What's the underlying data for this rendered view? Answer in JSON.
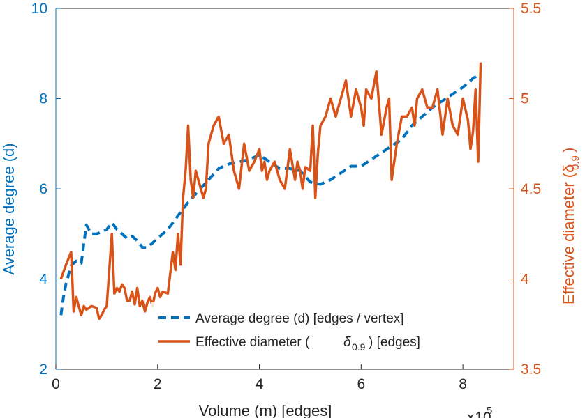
{
  "chart_data": {
    "type": "line",
    "title": "",
    "xlabel": "Volume (m) [edges]",
    "x_exponent": "×10",
    "x_exponent_power": "5",
    "xlim": [
      0,
      9
    ],
    "xticks": [
      0,
      2,
      4,
      6,
      8
    ],
    "ylabel_left": "Average degree (d)",
    "ylim_left": [
      2,
      10
    ],
    "yticks_left": [
      2,
      4,
      6,
      8,
      10
    ],
    "ylabel_right": "Effective diameter (δ",
    "ylabel_right_sub": "0.9",
    "ylabel_right_end": ")",
    "ylim_right": [
      3.5,
      5.5
    ],
    "yticks_right": [
      "3.5",
      "4",
      "4.5",
      "5",
      "5.5"
    ],
    "colors": {
      "avg_degree": "#0072BD",
      "eff_diameter": "#D95319",
      "axis_text": "#262626"
    },
    "legend": {
      "location": "bottom-center",
      "entries": [
        {
          "text": "Average degree (d) [edges / vertex]"
        },
        {
          "text_before": "Effective diameter (",
          "symbol": "δ",
          "sub": "0.9",
          "text_after": ") [edges]"
        }
      ]
    },
    "series": [
      {
        "name": "Average degree (d) [edges / vertex]",
        "axis": "left",
        "style": "dashed",
        "x": [
          0.1,
          0.15,
          0.2,
          0.3,
          0.4,
          0.5,
          0.6,
          0.7,
          0.8,
          0.9,
          1.0,
          1.1,
          1.2,
          1.3,
          1.4,
          1.5,
          1.6,
          1.7,
          1.8,
          1.9,
          2.0,
          2.2,
          2.4,
          2.6,
          2.8,
          3.0,
          3.2,
          3.4,
          3.6,
          3.8,
          4.0,
          4.2,
          4.4,
          4.6,
          4.8,
          5.0,
          5.2,
          5.4,
          5.6,
          5.8,
          6.0,
          6.2,
          6.4,
          6.6,
          6.8,
          7.0,
          7.2,
          7.4,
          7.6,
          7.8,
          8.0,
          8.2,
          8.35
        ],
        "y": [
          3.2,
          3.6,
          3.9,
          4.3,
          4.4,
          4.35,
          5.2,
          5.0,
          5.0,
          5.05,
          5.1,
          5.25,
          5.1,
          5.0,
          4.9,
          4.95,
          4.85,
          4.7,
          4.7,
          4.8,
          4.9,
          5.1,
          5.4,
          5.7,
          5.95,
          6.2,
          6.45,
          6.55,
          6.6,
          6.65,
          6.75,
          6.6,
          6.45,
          6.45,
          6.4,
          6.15,
          6.1,
          6.2,
          6.35,
          6.5,
          6.5,
          6.65,
          6.8,
          6.95,
          7.1,
          7.4,
          7.6,
          7.8,
          7.95,
          8.1,
          8.25,
          8.45,
          8.55
        ]
      },
      {
        "name": "Effective diameter (δ 0.9) [edges]",
        "axis": "right",
        "style": "solid",
        "x": [
          0.1,
          0.2,
          0.3,
          0.35,
          0.4,
          0.45,
          0.5,
          0.55,
          0.6,
          0.7,
          0.8,
          0.85,
          0.9,
          0.95,
          1.0,
          1.1,
          1.15,
          1.2,
          1.25,
          1.3,
          1.35,
          1.4,
          1.45,
          1.5,
          1.55,
          1.6,
          1.65,
          1.7,
          1.75,
          1.8,
          1.85,
          1.9,
          1.95,
          2.0,
          2.05,
          2.1,
          2.2,
          2.3,
          2.35,
          2.4,
          2.45,
          2.5,
          2.55,
          2.6,
          2.65,
          2.7,
          2.75,
          2.8,
          2.85,
          2.9,
          2.95,
          3.0,
          3.1,
          3.2,
          3.3,
          3.4,
          3.5,
          3.6,
          3.7,
          3.8,
          3.9,
          4.0,
          4.05,
          4.1,
          4.15,
          4.2,
          4.3,
          4.4,
          4.5,
          4.6,
          4.7,
          4.75,
          4.8,
          4.85,
          4.9,
          5.0,
          5.05,
          5.1,
          5.15,
          5.2,
          5.3,
          5.4,
          5.5,
          5.6,
          5.7,
          5.75,
          5.8,
          5.9,
          6.0,
          6.05,
          6.1,
          6.2,
          6.3,
          6.4,
          6.5,
          6.55,
          6.6,
          6.7,
          6.8,
          6.9,
          7.0,
          7.05,
          7.1,
          7.2,
          7.3,
          7.4,
          7.5,
          7.6,
          7.7,
          7.8,
          7.9,
          8.0,
          8.1,
          8.15,
          8.2,
          8.25,
          8.3,
          8.35
        ],
        "y": [
          4.0,
          4.08,
          4.15,
          3.82,
          3.9,
          3.85,
          3.8,
          3.85,
          3.83,
          3.85,
          3.84,
          3.78,
          3.8,
          3.83,
          3.85,
          4.25,
          3.92,
          3.95,
          3.93,
          3.97,
          3.95,
          3.88,
          3.88,
          3.93,
          3.86,
          3.95,
          3.85,
          3.88,
          3.82,
          3.87,
          3.9,
          3.85,
          3.92,
          3.95,
          3.9,
          3.93,
          3.92,
          4.15,
          4.05,
          4.25,
          4.08,
          4.45,
          4.6,
          4.85,
          4.55,
          4.45,
          4.6,
          4.55,
          4.5,
          4.45,
          4.5,
          4.75,
          4.85,
          4.9,
          4.75,
          4.8,
          4.6,
          4.5,
          4.75,
          4.6,
          4.65,
          4.72,
          4.6,
          4.65,
          4.55,
          4.6,
          4.65,
          4.55,
          4.5,
          4.72,
          4.55,
          4.65,
          4.6,
          4.5,
          4.62,
          4.6,
          4.85,
          4.45,
          4.7,
          4.85,
          4.9,
          5.0,
          4.9,
          5.0,
          5.1,
          5.0,
          4.9,
          5.05,
          4.95,
          4.85,
          5.05,
          5.0,
          5.15,
          4.8,
          4.95,
          5.0,
          4.55,
          4.75,
          4.9,
          4.9,
          4.95,
          4.85,
          5.0,
          5.05,
          4.95,
          4.95,
          5.05,
          4.8,
          5.0,
          4.85,
          4.8,
          5.0,
          4.88,
          4.72,
          4.82,
          5.05,
          4.65,
          5.2
        ]
      }
    ]
  }
}
